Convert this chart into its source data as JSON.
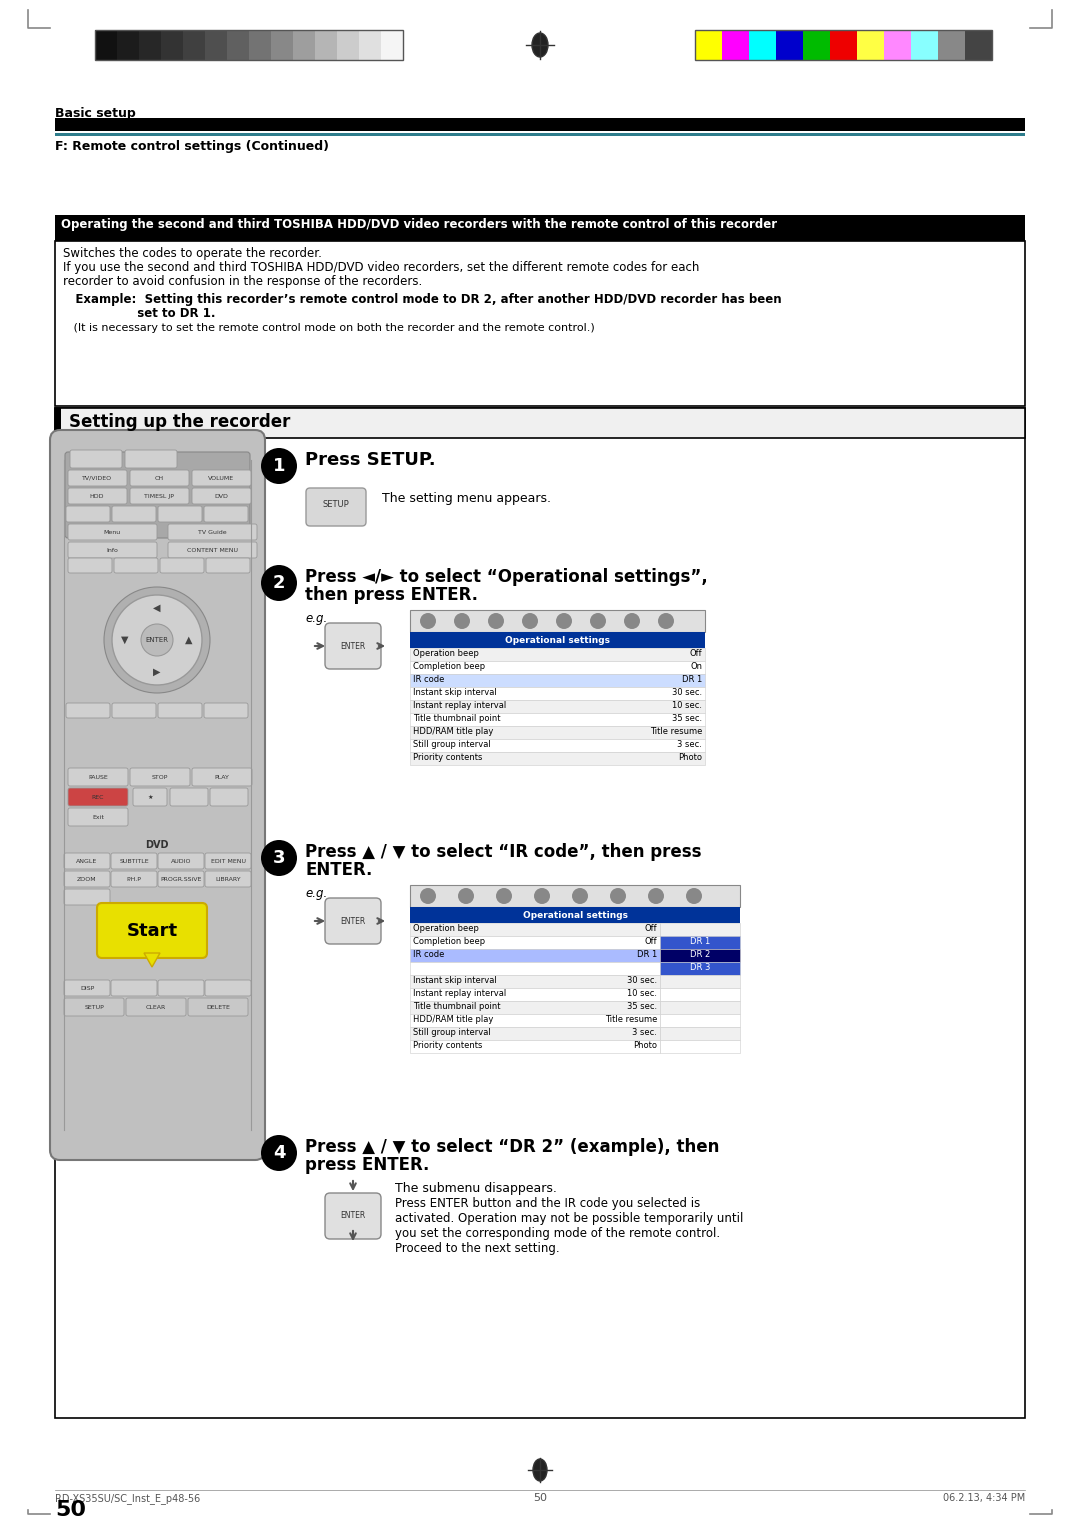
{
  "page_width": 10.8,
  "page_height": 15.28,
  "bg_color": "#ffffff",
  "section_label": "Basic setup",
  "section_sublabel": "F: Remote control settings (Continued)",
  "main_box_title": "Operating the second and third TOSHIBA HDD/DVD video recorders with the remote control of this recorder",
  "switches_text": "Switches the codes to operate the recorder.",
  "if_text": "If you use the second and third TOSHIBA HDD/DVD video recorders, set the different remote codes for each\nrecorder to avoid confusion in the response of the recorders.",
  "example_bold1": "   Example:  Setting this recorder’s remote control mode to DR 2, after another HDD/DVD recorder has been",
  "example_bold2": "                  set to DR 1.",
  "it_text": "   (It is necessary to set the remote control mode on both the recorder and the remote control.)",
  "setup_box_title": "Setting up the recorder",
  "step1_text": "Press SETUP.",
  "step1_sub": "The setting menu appears.",
  "step2_text1": "Press ◄/► to select “Operational settings”,",
  "step2_text2": "then press ENTER.",
  "step2_eg": "e.g.",
  "step3_text1": "Press ▲ / ▼ to select “IR code”, then press",
  "step3_text2": "ENTER.",
  "step3_eg": "e.g.",
  "step4_text1": "Press ▲ / ▼ to select “DR 2” (example), then",
  "step4_text2": "press ENTER.",
  "step4_sub1": "The submenu disappears.",
  "step4_sub2": "Press ENTER button and the IR code you selected is\nactivated. Operation may not be possible temporarily until\nyou set the corresponding mode of the remote control.\nProceed to the next setting.",
  "footer_left": "RD-XS35SU/SC_Inst_E_p48-56",
  "footer_center": "50",
  "footer_right": "06.2.13, 4:34 PM",
  "page_number": "50",
  "op_settings_rows": [
    [
      "Operation beep",
      "Off"
    ],
    [
      "Completion beep",
      "On"
    ],
    [
      "IR code",
      "DR 1"
    ],
    [
      "Instant skip interval",
      "30 sec."
    ],
    [
      "Instant replay interval",
      "10 sec."
    ],
    [
      "Title thumbnail point",
      "35 sec."
    ],
    [
      "HDD/RAM title play",
      "Title resume"
    ],
    [
      "Still group interval",
      "3 sec."
    ],
    [
      "Priority contents",
      "Photo"
    ]
  ],
  "op_settings_rows2": [
    [
      "Operation beep",
      "Off",
      ""
    ],
    [
      "Completion beep",
      "Off",
      "DR 1"
    ],
    [
      "IR code",
      "DR 1",
      "DR 2"
    ],
    [
      "",
      "",
      "DR 3"
    ],
    [
      "Instant skip interval",
      "30 sec.",
      ""
    ],
    [
      "Instant replay interval",
      "10 sec.",
      ""
    ],
    [
      "Title thumbnail point",
      "35 sec.",
      ""
    ],
    [
      "HDD/RAM title play",
      "Title resume",
      ""
    ],
    [
      "Still group interval",
      "3 sec.",
      ""
    ],
    [
      "Priority contents",
      "Photo",
      ""
    ]
  ],
  "grayscale_colors": [
    "#111111",
    "#1c1c1c",
    "#272727",
    "#333333",
    "#404040",
    "#4f4f4f",
    "#606060",
    "#737373",
    "#888888",
    "#9e9e9e",
    "#b5b5b5",
    "#cccccc",
    "#e0e0e0",
    "#f5f5f5"
  ],
  "color_bars": [
    "#ffff00",
    "#ff00ff",
    "#00ffff",
    "#0000cc",
    "#00bb00",
    "#ee0000",
    "#ffff44",
    "#ff88ff",
    "#88ffff",
    "#888888",
    "#444444"
  ]
}
